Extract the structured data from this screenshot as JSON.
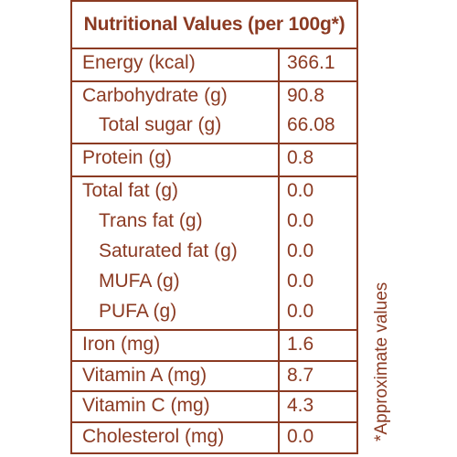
{
  "title": "Nutritional Values (per 100g*)",
  "rows": [
    {
      "label": "Energy (kcal)",
      "value": "366.1"
    },
    {
      "label": "Carbohydrate (g)",
      "value": "90.8"
    },
    {
      "label": "Total sugar (g)",
      "value": "66.08"
    },
    {
      "label": "Protein (g)",
      "value": "0.8"
    },
    {
      "label": "Total fat (g)",
      "value": "0.0"
    },
    {
      "label": "Trans fat (g)",
      "value": "0.0"
    },
    {
      "label": "Saturated fat (g)",
      "value": "0.0"
    },
    {
      "label": "MUFA (g)",
      "value": "0.0"
    },
    {
      "label": "PUFA (g)",
      "value": "0.0"
    },
    {
      "label": "Iron (mg)",
      "value": "1.6"
    },
    {
      "label": "Vitamin A (mg)",
      "value": "8.7"
    },
    {
      "label": "Vitamin C (mg)",
      "value": "4.3"
    },
    {
      "label": "Cholesterol (mg)",
      "value": "0.0"
    }
  ],
  "footnote": "*Approximate values",
  "colors": {
    "ink": "#8b3a22",
    "background": "#ffffff"
  }
}
